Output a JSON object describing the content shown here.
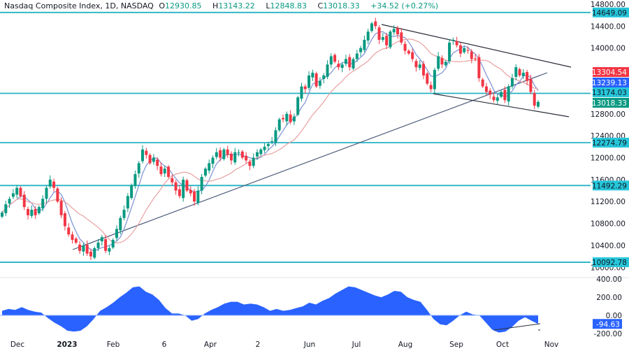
{
  "header": {
    "symbol": "Nasdaq Composite Index, 1D, NASDAQ",
    "open_label": "O",
    "open": "12930.85",
    "high_label": "H",
    "high": "13143.22",
    "low_label": "L",
    "low": "12848.83",
    "close_label": "C",
    "close": "13018.33",
    "change": "+34.52 (+0.27%)"
  },
  "price_axis": {
    "ticks": [
      "14800.00",
      "14400.00",
      "14000.00",
      "12800.00",
      "12400.00",
      "12000.00",
      "11600.00",
      "11200.00",
      "10800.00",
      "10400.00",
      "10000.00"
    ],
    "tags": [
      {
        "value": "14649.09",
        "color": "#26c6da",
        "text_color": "#131722"
      },
      {
        "value": "13304.54",
        "color": "#f23645",
        "text_color": "#ffffff"
      },
      {
        "value": "13239.13",
        "color": "#2962ff",
        "text_color": "#ffffff"
      },
      {
        "value": "13174.03",
        "color": "#26c6da",
        "text_color": "#131722"
      },
      {
        "value": "13018.33",
        "color": "#089981",
        "text_color": "#ffffff"
      },
      {
        "value": "12274.79",
        "color": "#26c6da",
        "text_color": "#131722"
      },
      {
        "value": "11492.29",
        "color": "#26c6da",
        "text_color": "#131722"
      },
      {
        "value": "10092.78",
        "color": "#26c6da",
        "text_color": "#131722"
      }
    ]
  },
  "oscillator_axis": {
    "ticks": [
      "400.00",
      "200.00",
      "0.00",
      "-200.00"
    ],
    "current": "-94.63",
    "current_color": "#2962ff"
  },
  "time_axis": {
    "labels": [
      "Dec",
      "2023",
      "Feb",
      "6",
      "Apr",
      "2",
      "Jun",
      "Jul",
      "Aug",
      "Sep",
      "Oct",
      "Nov"
    ]
  },
  "colors": {
    "up": "#089981",
    "down": "#f23645",
    "sma_fast": "#7b8fd4",
    "sma_slow": "#e8a0a0",
    "hline": "#26b3c4",
    "trendline": "#4a5a7a",
    "channel": "#2a2e39",
    "oscillator": "#2962ff"
  },
  "chart_data": [
    {
      "type": "candlestick",
      "title": "Nasdaq Composite Index, 1D, NASDAQ",
      "x_labels": [
        "Dec",
        "2023",
        "Feb",
        "6",
        "Apr",
        "2",
        "Jun",
        "Jul",
        "Aug",
        "Sep",
        "Oct",
        "Nov"
      ],
      "ylim": [
        10000,
        14800
      ],
      "y_ticks": [
        10000,
        10400,
        10800,
        11200,
        11600,
        12000,
        12400,
        12800,
        14000,
        14400,
        14800
      ],
      "last": {
        "open": 12930.85,
        "high": 13143.22,
        "low": 12848.83,
        "close": 13018.33,
        "change": 34.52,
        "change_pct": 0.27
      },
      "horizontal_levels": [
        14649.09,
        13174.03,
        12274.79,
        11492.29,
        10092.78
      ],
      "indicators": [
        {
          "name": "fast moving average",
          "last": 13239.13,
          "color": "#2962ff"
        },
        {
          "name": "slow moving average",
          "last": 13304.54,
          "color": "#f23645"
        }
      ],
      "closes_approx": [
        11000,
        11150,
        11250,
        11350,
        11450,
        11300,
        11100,
        10950,
        11050,
        10950,
        11100,
        11250,
        11450,
        11600,
        11450,
        11200,
        10950,
        10750,
        10600,
        10500,
        10450,
        10300,
        10400,
        10250,
        10200,
        10350,
        10450,
        10550,
        10300,
        10350,
        10500,
        10700,
        10900,
        11050,
        11300,
        11500,
        11700,
        11900,
        12150,
        12050,
        11900,
        12000,
        11850,
        11700,
        11800,
        11650,
        11550,
        11400,
        11300,
        11600,
        11400,
        11350,
        11200,
        11400,
        11650,
        11800,
        11900,
        12000,
        12100,
        12000,
        12150,
        12050,
        11950,
        12100,
        12100,
        12000,
        11950,
        11850,
        12000,
        12100,
        12150,
        12200,
        12250,
        12300,
        12500,
        12700,
        12700,
        12800,
        12650,
        12750,
        13100,
        13300,
        13250,
        13500,
        13550,
        13300,
        13400,
        13500,
        13700,
        13850,
        13750,
        13650,
        13700,
        13800,
        13650,
        13800,
        13900,
        14000,
        14150,
        14300,
        14450,
        14400,
        14150,
        14200,
        14050,
        14300,
        14350,
        14250,
        14100,
        13950,
        13900,
        13800,
        13650,
        13700,
        13500,
        13350,
        13250,
        13600,
        13850,
        13700,
        13750,
        14100,
        14150,
        14050,
        13900,
        14000,
        13950,
        13800,
        13800,
        13450,
        13300,
        13200,
        13150,
        13050,
        13100,
        13200,
        13050,
        13300,
        13450,
        13650,
        13500,
        13550,
        13400,
        13200,
        12950,
        13018
      ]
    },
    {
      "type": "area",
      "title": "Oscillator",
      "ylim": [
        -250,
        400
      ],
      "y_ticks": [
        -200,
        0,
        200,
        400
      ],
      "last": -94.63,
      "values_approx": [
        50,
        70,
        60,
        90,
        60,
        40,
        30,
        -30,
        -80,
        -120,
        -170,
        -180,
        -170,
        -120,
        -40,
        50,
        90,
        140,
        200,
        250,
        310,
        320,
        260,
        230,
        170,
        80,
        20,
        20,
        0,
        -60,
        -40,
        20,
        60,
        90,
        130,
        150,
        150,
        120,
        130,
        120,
        90,
        50,
        70,
        50,
        60,
        80,
        100,
        140,
        120,
        160,
        190,
        240,
        280,
        320,
        310,
        280,
        250,
        220,
        200,
        230,
        270,
        260,
        200,
        170,
        150,
        60,
        -40,
        -100,
        -110,
        -60,
        0,
        40,
        10,
        0,
        -80,
        -160,
        -190,
        -180,
        -130,
        -60,
        -20,
        -60,
        -94.63
      ]
    }
  ]
}
